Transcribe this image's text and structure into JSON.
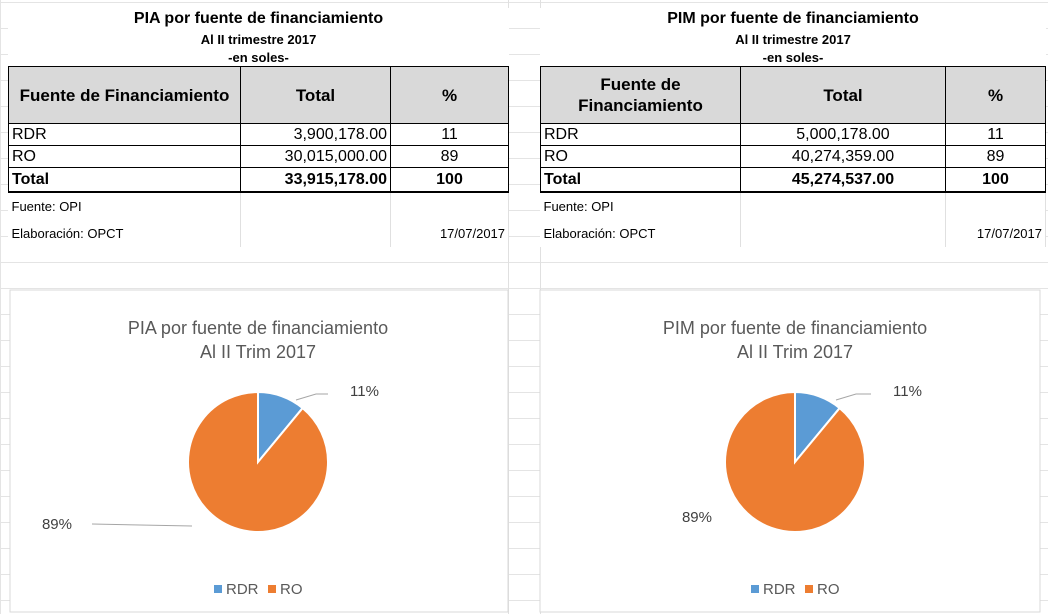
{
  "tables": [
    {
      "title": "PIA por fuente de financiamiento",
      "subtitle": [
        "Al II trimestre 2017",
        "-en soles-"
      ],
      "header": [
        "Fuente de Financiamiento",
        "Total",
        "%"
      ],
      "rows": [
        [
          "RDR",
          "3,900,178.00",
          "11"
        ],
        [
          "RO",
          "30,015,000.00",
          "89"
        ]
      ],
      "total": [
        "Total",
        "33,915,178.00",
        "100"
      ],
      "source": "Fuente: OPI",
      "prepared": "Elaboración: OPCT",
      "date": "17/07/2017"
    },
    {
      "title": "PIM por fuente de financiamiento",
      "subtitle": [
        "Al II trimestre 2017",
        "-en soles-"
      ],
      "header": [
        "Fuente de Financiamiento",
        "Total",
        "%"
      ],
      "rows": [
        [
          "RDR",
          "5,000,178.00",
          "11"
        ],
        [
          "RO",
          "40,274,359.00",
          "89"
        ]
      ],
      "total": [
        "Total",
        "45,274,537.00",
        "100"
      ],
      "source": "Fuente: OPI",
      "prepared": "Elaboración: OPCT",
      "date": "17/07/2017"
    }
  ],
  "chart_data": [
    {
      "type": "pie",
      "title": "PIA por fuente de financiamiento",
      "subtitle": "Al II Trim 2017",
      "categories": [
        "RDR",
        "RO"
      ],
      "values": [
        11,
        89
      ],
      "value_labels": [
        "11%",
        "89%"
      ],
      "colors": [
        "#5b9bd5",
        "#ed7d31"
      ],
      "legend": "bottom"
    },
    {
      "type": "pie",
      "title": "PIM por fuente de financiamiento",
      "subtitle": "Al II Trim 2017",
      "categories": [
        "RDR",
        "RO"
      ],
      "values": [
        11,
        89
      ],
      "value_labels": [
        "11%",
        "89%"
      ],
      "colors": [
        "#5b9bd5",
        "#ed7d31"
      ],
      "legend": "bottom"
    }
  ]
}
